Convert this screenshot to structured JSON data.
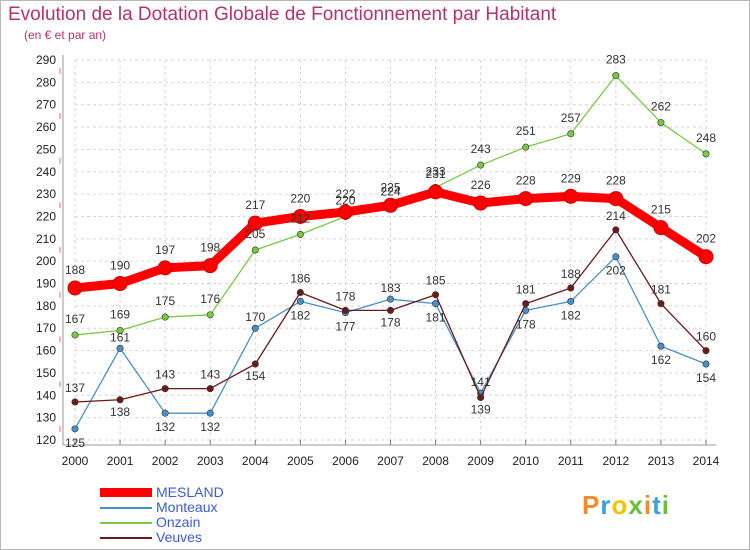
{
  "header": {
    "title": "Evolution de la Dotation Globale de Fonctionnement par Habitant",
    "subtitle": "(en € et par an)"
  },
  "logo": {
    "text": "Proxiti"
  },
  "chart_data": {
    "type": "line",
    "title": "Evolution de la Dotation Globale de Fonctionnement par Habitant",
    "subtitle": "(en € et par an)",
    "xlabel": "",
    "ylabel": "",
    "ylim": [
      120,
      290
    ],
    "ystep": 10,
    "grid": true,
    "legend_position": "bottom-left",
    "x": [
      "2000",
      "2001",
      "2002",
      "2003",
      "2004",
      "2005",
      "2006",
      "2007",
      "2008",
      "2009",
      "2010",
      "2011",
      "2012",
      "2013",
      "2014"
    ],
    "series": [
      {
        "name": "MESLAND",
        "color": "#ff0000",
        "values": [
          188,
          190,
          197,
          198,
          217,
          220,
          222,
          225,
          231,
          226,
          228,
          229,
          228,
          215,
          202
        ]
      },
      {
        "name": "Monteaux",
        "color": "#4a90c8",
        "values": [
          125,
          161,
          132,
          132,
          170,
          182,
          177,
          183,
          181,
          141,
          178,
          182,
          202,
          162,
          154
        ]
      },
      {
        "name": "Onzain",
        "color": "#7ac943",
        "values": [
          167,
          169,
          175,
          176,
          205,
          212,
          220,
          224,
          233,
          243,
          251,
          257,
          283,
          262,
          248
        ]
      },
      {
        "name": "Veuves",
        "color": "#6b1a1a",
        "values": [
          137,
          138,
          143,
          143,
          154,
          186,
          178,
          178,
          185,
          139,
          181,
          188,
          214,
          181,
          160
        ]
      }
    ]
  }
}
